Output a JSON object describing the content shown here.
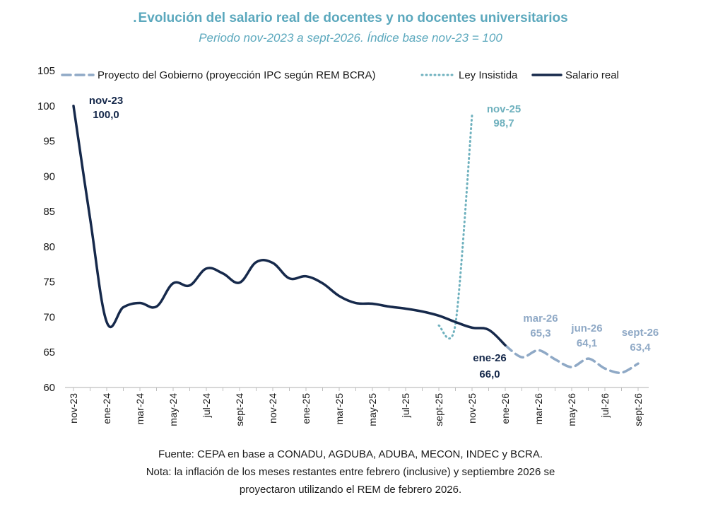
{
  "title": "Evolución del salario real de docentes y no docentes universitarios",
  "subtitle": "Periodo nov-2023 a sept-2026. Índice base nov-23 = 100",
  "footnotes": {
    "source": "Fuente: CEPA en base a CONADU, AGDUBA, ADUBA, MECON, INDEC y BCRA.",
    "note_line1": "Nota: la inflación de los meses restantes entre febrero (inclusive) y septiembre 2026 se",
    "note_line2": "proyectaron utilizando el REM de febrero 2026."
  },
  "colors": {
    "salario_real": "#16294b",
    "proyecto": "#8fa9c6",
    "ley": "#6fb1be",
    "axis": "#bfbfbf",
    "text": "#1a1a1a",
    "title": "#5ba8bd"
  },
  "chart_data": {
    "type": "line",
    "title": "Evolución del salario real de docentes y no docentes universitarios",
    "subtitle": "Periodo nov-2023 a sept-2026. Índice base nov-23 = 100",
    "x": [
      "nov-23",
      "dic-23",
      "ene-24",
      "feb-24",
      "mar-24",
      "abr-24",
      "may-24",
      "jun-24",
      "jul-24",
      "ago-24",
      "sept-24",
      "oct-24",
      "nov-24",
      "dic-24",
      "ene-25",
      "feb-25",
      "mar-25",
      "abr-25",
      "may-25",
      "jun-25",
      "jul-25",
      "ago-25",
      "sept-25",
      "oct-25",
      "nov-25",
      "dic-25",
      "ene-26",
      "feb-26",
      "mar-26",
      "abr-26",
      "may-26",
      "jun-26",
      "jul-26",
      "ago-26",
      "sept-26"
    ],
    "x_tick_labels": [
      "nov-23",
      "ene-24",
      "mar-24",
      "may-24",
      "jul-24",
      "sept-24",
      "nov-24",
      "ene-25",
      "mar-25",
      "may-25",
      "jul-25",
      "sept-25",
      "nov-25",
      "ene-26",
      "mar-26",
      "may-26",
      "jul-26",
      "sept-26"
    ],
    "ylim": [
      60,
      105
    ],
    "yticks": [
      60,
      65,
      70,
      75,
      80,
      85,
      90,
      95,
      100,
      105
    ],
    "grid": false,
    "legend_position": "top",
    "series": [
      {
        "name": "Proyecto del Gobierno (proyección IPC según REM BCRA)",
        "style": "dashed",
        "x": [
          "ene-26",
          "feb-26",
          "mar-26",
          "abr-26",
          "may-26",
          "jun-26",
          "jul-26",
          "ago-26",
          "sept-26"
        ],
        "values": [
          66.0,
          64.3,
          65.3,
          64.0,
          62.9,
          64.1,
          62.7,
          62.1,
          63.4
        ]
      },
      {
        "name": "Ley Insistida",
        "style": "dotted",
        "x": [
          "sept-25",
          "oct-25",
          "nov-25"
        ],
        "values": [
          68.8,
          69.0,
          98.7
        ]
      },
      {
        "name": "Salario real",
        "style": "solid",
        "x": [
          "nov-23",
          "dic-23",
          "ene-24",
          "feb-24",
          "mar-24",
          "abr-24",
          "may-24",
          "jun-24",
          "jul-24",
          "ago-24",
          "sept-24",
          "oct-24",
          "nov-24",
          "dic-24",
          "ene-25",
          "feb-25",
          "mar-25",
          "abr-25",
          "may-25",
          "jun-25",
          "jul-25",
          "ago-25",
          "sept-25",
          "oct-25",
          "nov-25",
          "dic-25",
          "ene-26"
        ],
        "values": [
          100.0,
          84.0,
          69.3,
          71.4,
          72.0,
          71.5,
          74.8,
          74.5,
          76.9,
          76.2,
          74.9,
          77.8,
          77.7,
          75.5,
          75.8,
          74.8,
          73.0,
          72.0,
          71.9,
          71.5,
          71.2,
          70.8,
          70.2,
          69.3,
          68.5,
          68.2,
          66.0
        ]
      }
    ],
    "annotations": [
      {
        "x": "nov-23",
        "label": "nov-23",
        "value": "100,0"
      },
      {
        "x": "nov-25",
        "label": "nov-25",
        "value": "98,7"
      },
      {
        "x": "ene-26",
        "label": "ene-26",
        "value": "66,0"
      },
      {
        "x": "mar-26",
        "label": "mar-26",
        "value": "65,3"
      },
      {
        "x": "jun-26",
        "label": "jun-26",
        "value": "64,1"
      },
      {
        "x": "sept-26",
        "label": "sept-26",
        "value": "63,4"
      }
    ]
  }
}
